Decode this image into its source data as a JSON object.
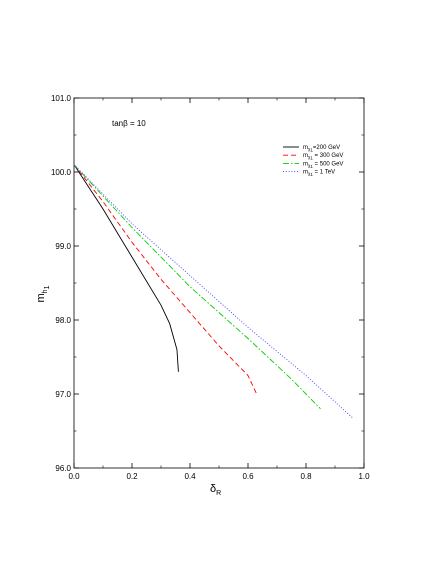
{
  "chart_data": {
    "type": "line",
    "title": "",
    "xlabel": {
      "main": "δ",
      "sub": "R"
    },
    "ylabel": {
      "main": "m",
      "sub": "h",
      "subsub": "1"
    },
    "xlim": [
      0.0,
      1.0
    ],
    "ylim": [
      96.0,
      101.0
    ],
    "x_ticks": [
      0.0,
      0.2,
      0.4,
      0.6,
      0.8,
      1.0
    ],
    "x_tick_labels": [
      "0.0",
      "0.2",
      "0.4",
      "0.6",
      "0.8",
      "1.0"
    ],
    "y_ticks": [
      96.0,
      97.0,
      98.0,
      99.0,
      100.0,
      101.0
    ],
    "y_tick_labels": [
      "96.0",
      "97.0",
      "98.0",
      "99.0",
      "100.0",
      "101.0"
    ],
    "grid": false,
    "legend_position": "top-right",
    "annotation": {
      "prefix": "tan",
      "symbol": "β",
      "suffix": " = 10"
    },
    "series": [
      {
        "name": {
          "main": "m",
          "sub": "χ",
          "subsub": "1",
          "rest": "=200 GeV"
        },
        "color": "#000000",
        "dash": "solid",
        "points": [
          [
            0.0,
            100.1
          ],
          [
            0.1,
            99.5
          ],
          [
            0.2,
            98.85
          ],
          [
            0.3,
            98.2
          ],
          [
            0.33,
            97.95
          ],
          [
            0.355,
            97.6
          ],
          [
            0.36,
            97.3
          ]
        ]
      },
      {
        "name": {
          "main": "m",
          "sub": "χ",
          "subsub": "1",
          "rest": " = 300 GeV"
        },
        "color": "#ff0000",
        "dash": "dashed",
        "points": [
          [
            0.0,
            100.1
          ],
          [
            0.1,
            99.6
          ],
          [
            0.2,
            99.05
          ],
          [
            0.3,
            98.55
          ],
          [
            0.4,
            98.1
          ],
          [
            0.5,
            97.65
          ],
          [
            0.6,
            97.25
          ],
          [
            0.63,
            97.0
          ]
        ]
      },
      {
        "name": {
          "main": "m",
          "sub": "χ",
          "subsub": "1",
          "rest": " = 500 GeV"
        },
        "color": "#00cc00",
        "dash": "dashdot",
        "points": [
          [
            0.0,
            100.1
          ],
          [
            0.2,
            99.25
          ],
          [
            0.4,
            98.45
          ],
          [
            0.6,
            97.75
          ],
          [
            0.75,
            97.2
          ],
          [
            0.85,
            96.8
          ]
        ]
      },
      {
        "name": {
          "main": "m",
          "sub": "χ",
          "subsub": "1",
          "rest": " = 1 TeV"
        },
        "color": "#4040ff",
        "dash": "dotted",
        "points": [
          [
            0.0,
            100.1
          ],
          [
            0.2,
            99.3
          ],
          [
            0.4,
            98.6
          ],
          [
            0.6,
            97.9
          ],
          [
            0.8,
            97.25
          ],
          [
            0.96,
            96.68
          ]
        ]
      }
    ]
  }
}
